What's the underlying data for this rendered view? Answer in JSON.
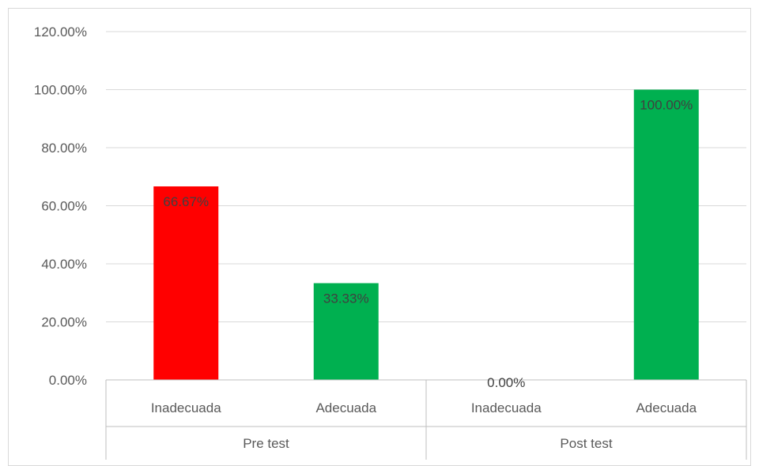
{
  "chart_data": {
    "type": "bar",
    "ylim": [
      0,
      1.2
    ],
    "y_ticks": [
      "0.00%",
      "20.00%",
      "40.00%",
      "60.00%",
      "80.00%",
      "100.00%",
      "120.00%"
    ],
    "y_tick_values": [
      0,
      0.2,
      0.4,
      0.6,
      0.8,
      1.0,
      1.2
    ],
    "grid": true,
    "groups": [
      {
        "label": "Pre test",
        "bars": [
          {
            "category": "Inadecuada",
            "value": 0.6667,
            "label": "66.67%",
            "color": "#ff0000"
          },
          {
            "category": "Adecuada",
            "value": 0.3333,
            "label": "33.33%",
            "color": "#00b050"
          }
        ]
      },
      {
        "label": "Post test",
        "bars": [
          {
            "category": "Inadecuada",
            "value": 0.0,
            "label": "0.00%",
            "color": "#ff0000"
          },
          {
            "category": "Adecuada",
            "value": 1.0,
            "label": "100.00%",
            "color": "#00b050"
          }
        ]
      }
    ]
  }
}
